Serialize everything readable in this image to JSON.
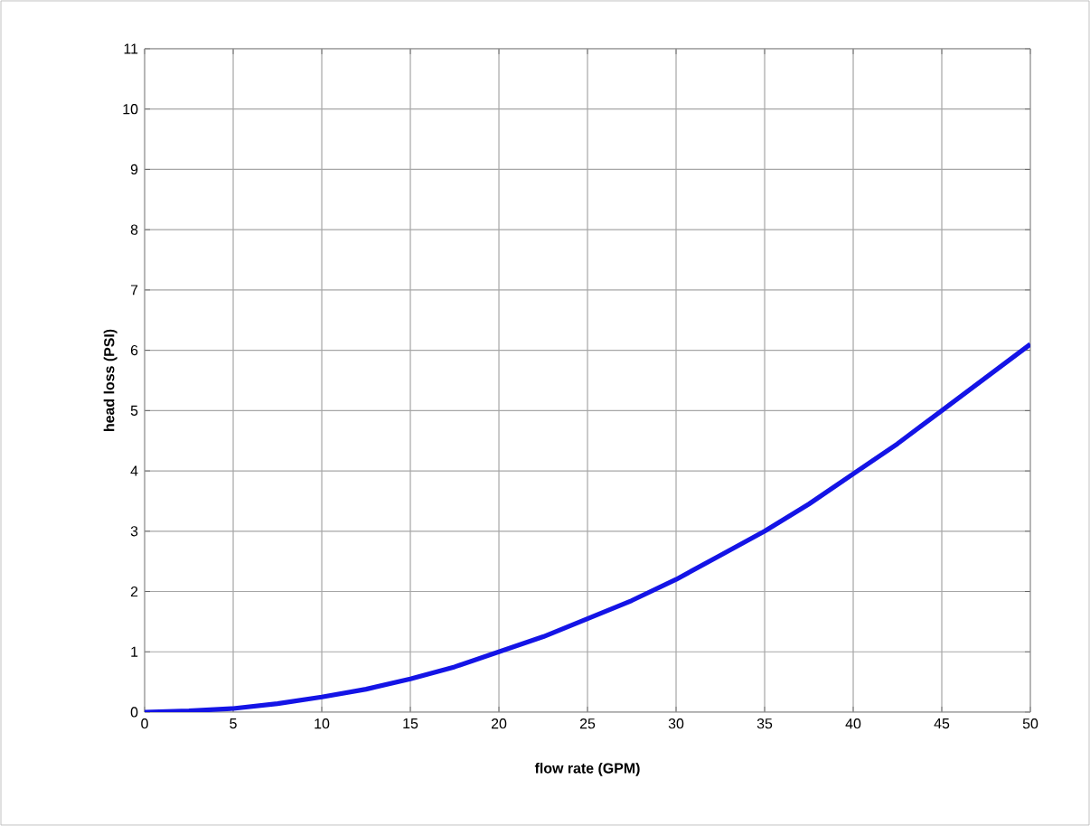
{
  "chart_data": {
    "type": "line",
    "xlabel": "flow rate (GPM)",
    "ylabel": "head loss (PSI)",
    "x": [
      0,
      2.5,
      5,
      7.5,
      10,
      12.5,
      15,
      17.5,
      20,
      22.5,
      25,
      27.5,
      30,
      32.5,
      35,
      37.5,
      40,
      42.5,
      45,
      47.5,
      50
    ],
    "series": [
      {
        "color": "#1414e6",
        "values": [
          0,
          0.02,
          0.06,
          0.14,
          0.25,
          0.38,
          0.55,
          0.75,
          1.0,
          1.25,
          1.55,
          1.85,
          2.2,
          2.6,
          3.0,
          3.45,
          3.95,
          4.45,
          5.0,
          5.55,
          6.1
        ]
      }
    ],
    "xlim": [
      0,
      50
    ],
    "ylim": [
      0,
      11
    ],
    "xticks": [
      0,
      5,
      10,
      15,
      20,
      25,
      30,
      35,
      40,
      45,
      50
    ],
    "yticks": [
      0,
      1,
      2,
      3,
      4,
      5,
      6,
      7,
      8,
      9,
      10,
      11
    ],
    "grid": true,
    "marker": "none",
    "line_style": "solid"
  }
}
